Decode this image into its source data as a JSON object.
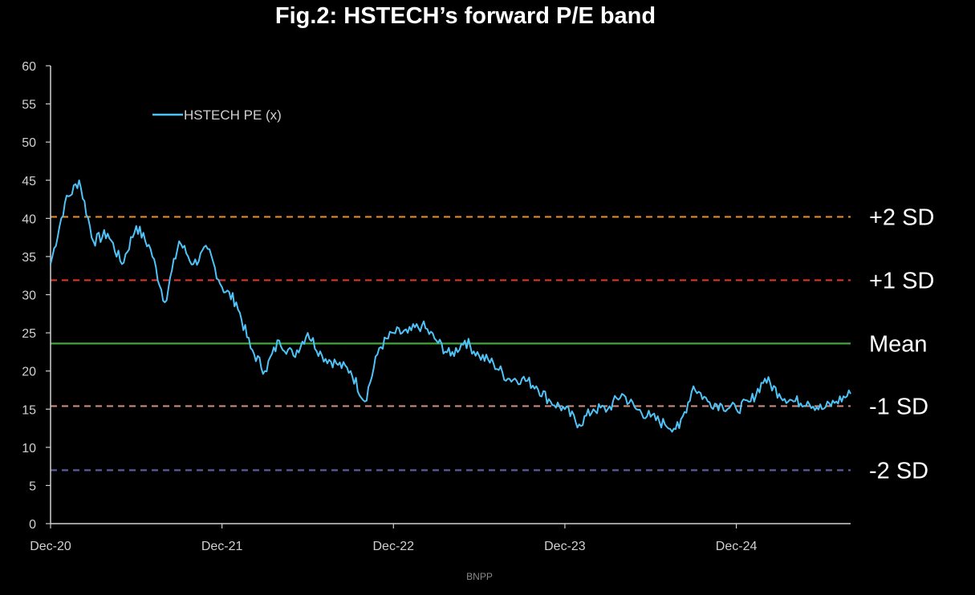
{
  "source": "BNPP",
  "chart_data": {
    "type": "line",
    "title": "Fig.2: HSTECH’s forward P/E band",
    "ylim": [
      0,
      60
    ],
    "yticks": [
      0,
      5,
      10,
      15,
      20,
      25,
      30,
      35,
      40,
      45,
      50,
      55,
      60
    ],
    "x_ticks": [
      "Dec-20",
      "Dec-21",
      "Dec-22",
      "Dec-23",
      "Dec-24"
    ],
    "xlim": [
      "2020-12",
      "2025-08"
    ],
    "grid": false,
    "legend_position": "top-left",
    "series": [
      {
        "name": "HSTECH PE (x)",
        "color": "#4fc3f7",
        "x": [
          "2020-12",
          "2021-01",
          "2021-02",
          "2021-03",
          "2021-04",
          "2021-05",
          "2021-06",
          "2021-07",
          "2021-08",
          "2021-09",
          "2021-10",
          "2021-11",
          "2021-12",
          "2022-01",
          "2022-02",
          "2022-03",
          "2022-04",
          "2022-05",
          "2022-06",
          "2022-07",
          "2022-08",
          "2022-09",
          "2022-10",
          "2022-11",
          "2022-12",
          "2023-01",
          "2023-02",
          "2023-03",
          "2023-04",
          "2023-05",
          "2023-06",
          "2023-07",
          "2023-08",
          "2023-09",
          "2023-10",
          "2023-11",
          "2023-12",
          "2024-01",
          "2024-02",
          "2024-03",
          "2024-04",
          "2024-05",
          "2024-06",
          "2024-07",
          "2024-08",
          "2024-09",
          "2024-10",
          "2024-11",
          "2024-12",
          "2025-01",
          "2025-02",
          "2025-03",
          "2025-04",
          "2025-05",
          "2025-06",
          "2025-07",
          "2025-08"
        ],
        "y": [
          34,
          42,
          45,
          37,
          38,
          34,
          39,
          36,
          29,
          37,
          34,
          36,
          31,
          29,
          23,
          20,
          24,
          22,
          25,
          22,
          21,
          20,
          16,
          23,
          25,
          25,
          26,
          24,
          22,
          24,
          22,
          21,
          19,
          19,
          18,
          16,
          15,
          13,
          15,
          15,
          17,
          15,
          14,
          13,
          12.5,
          18,
          16,
          15.5,
          15,
          16,
          19,
          17,
          16,
          16,
          15,
          16,
          17
        ]
      }
    ],
    "bands": [
      {
        "label": "+2 SD",
        "value": 40.2,
        "color": "#e08a2c"
      },
      {
        "label": "+1 SD",
        "value": 31.9,
        "color": "#e0342a"
      },
      {
        "label": "Mean",
        "value": 23.6,
        "color": "#3fa83a"
      },
      {
        "label": "-1 SD",
        "value": 15.4,
        "color": "#c98a7a"
      },
      {
        "label": "-2 SD",
        "value": 7.0,
        "color": "#5a5aa0"
      }
    ]
  }
}
